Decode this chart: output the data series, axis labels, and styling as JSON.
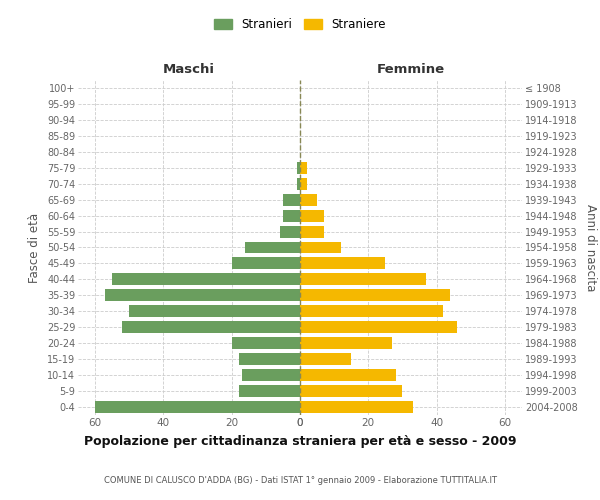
{
  "age_groups": [
    "0-4",
    "5-9",
    "10-14",
    "15-19",
    "20-24",
    "25-29",
    "30-34",
    "35-39",
    "40-44",
    "45-49",
    "50-54",
    "55-59",
    "60-64",
    "65-69",
    "70-74",
    "75-79",
    "80-84",
    "85-89",
    "90-94",
    "95-99",
    "100+"
  ],
  "birth_years": [
    "2004-2008",
    "1999-2003",
    "1994-1998",
    "1989-1993",
    "1984-1988",
    "1979-1983",
    "1974-1978",
    "1969-1973",
    "1964-1968",
    "1959-1963",
    "1954-1958",
    "1949-1953",
    "1944-1948",
    "1939-1943",
    "1934-1938",
    "1929-1933",
    "1924-1928",
    "1919-1923",
    "1914-1918",
    "1909-1913",
    "≤ 1908"
  ],
  "males": [
    60,
    18,
    17,
    18,
    20,
    52,
    50,
    57,
    55,
    20,
    16,
    6,
    5,
    5,
    1,
    1,
    0,
    0,
    0,
    0,
    0
  ],
  "females": [
    33,
    30,
    28,
    15,
    27,
    46,
    42,
    44,
    37,
    25,
    12,
    7,
    7,
    5,
    2,
    2,
    0,
    0,
    0,
    0,
    0
  ],
  "male_color": "#6a9e5e",
  "female_color": "#f5b800",
  "center_line_color": "#888855",
  "grid_color": "#cccccc",
  "bg_color": "#ffffff",
  "title": "Popolazione per cittadinanza straniera per età e sesso - 2009",
  "subtitle": "COMUNE DI CALUSCO D'ADDA (BG) - Dati ISTAT 1° gennaio 2009 - Elaborazione TUTTITALIA.IT",
  "ylabel_left": "Fasce di età",
  "ylabel_right": "Anni di nascita",
  "xlabel_left": "Maschi",
  "xlabel_right": "Femmine",
  "legend_male": "Stranieri",
  "legend_female": "Straniere",
  "xlim": 65,
  "bar_height": 0.75
}
